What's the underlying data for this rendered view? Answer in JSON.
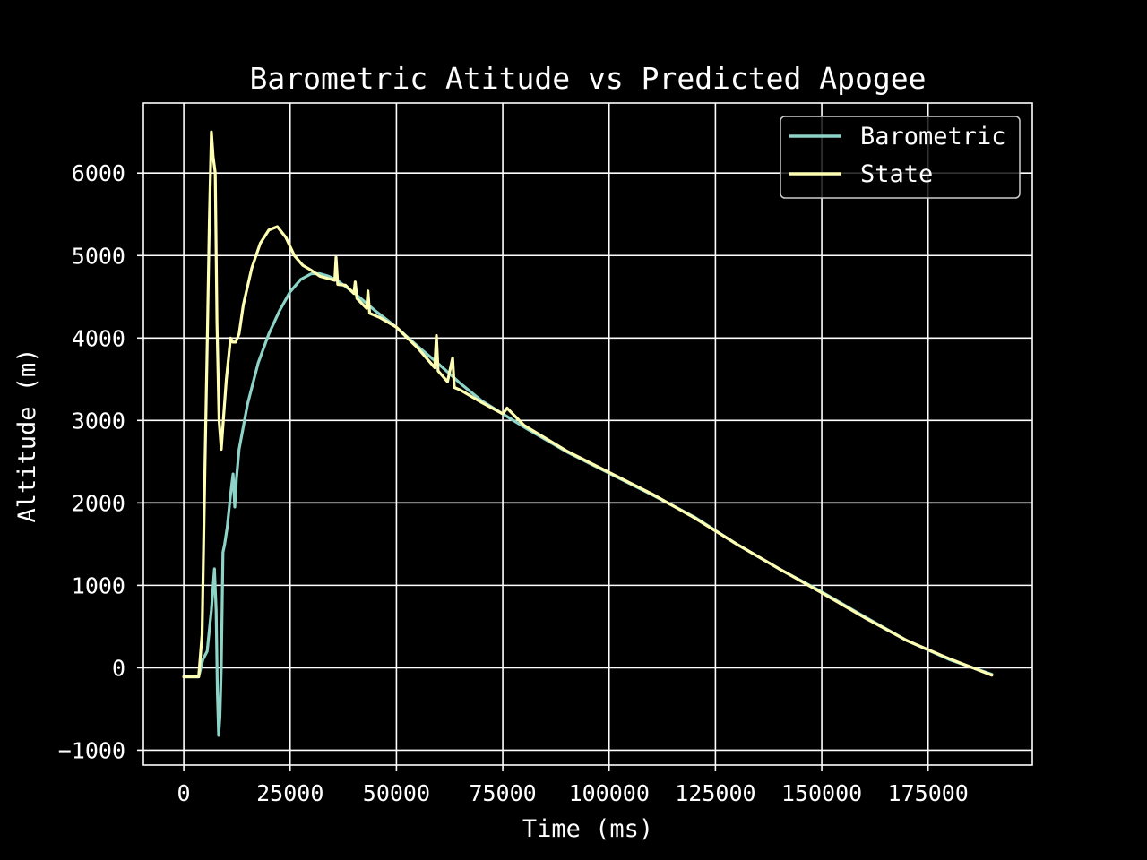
{
  "chart_data": {
    "type": "line",
    "title": "Barometric Atitude vs Predicted Apogee",
    "xlabel": "Time (ms)",
    "ylabel": "Altitude (m)",
    "xlim": [
      -9500,
      199500
    ],
    "ylim": [
      -1180,
      6850
    ],
    "xticks": [
      0,
      25000,
      50000,
      75000,
      100000,
      125000,
      150000,
      175000
    ],
    "yticks": [
      -1000,
      0,
      1000,
      2000,
      3000,
      4000,
      5000,
      6000
    ],
    "grid": true,
    "legend_position": "top-right",
    "colors": {
      "background": "#000000",
      "foreground": "#ffffff"
    },
    "series": [
      {
        "name": "Barometric",
        "color": "#8dd3c7",
        "x": [
          0,
          3500,
          4500,
          5500,
          6500,
          7200,
          7600,
          7900,
          8200,
          8500,
          8800,
          9200,
          9600,
          10200,
          11000,
          11600,
          12000,
          12400,
          13000,
          15000,
          17500,
          20000,
          22500,
          25000,
          27500,
          30000,
          32000,
          34000,
          36000,
          40000,
          45000,
          50000,
          55000,
          60000,
          65000,
          70000,
          75000,
          80000,
          90000,
          100000,
          110000,
          120000,
          130000,
          140000,
          150000,
          160000,
          170000,
          180000,
          190000
        ],
        "y": [
          -110,
          -110,
          100,
          200,
          700,
          1200,
          700,
          -300,
          -820,
          -600,
          0,
          1400,
          1500,
          1700,
          2100,
          2350,
          1950,
          2300,
          2650,
          3200,
          3700,
          4050,
          4330,
          4560,
          4710,
          4780,
          4780,
          4750,
          4700,
          4550,
          4330,
          4130,
          3900,
          3680,
          3450,
          3240,
          3080,
          2920,
          2620,
          2360,
          2100,
          1830,
          1500,
          1200,
          920,
          620,
          330,
          100,
          -80
        ]
      },
      {
        "name": "State",
        "color": "#ffffb3",
        "x": [
          0,
          3500,
          4300,
          5000,
          5500,
          6000,
          6500,
          6900,
          7400,
          7800,
          8300,
          8800,
          9300,
          10000,
          11000,
          11500,
          12200,
          13000,
          14000,
          16000,
          18000,
          20000,
          22000,
          24000,
          26000,
          28000,
          30000,
          32000,
          34000,
          35500,
          35800,
          36200,
          38000,
          40000,
          40300,
          40700,
          43000,
          43300,
          43700,
          46000,
          50000,
          55000,
          59000,
          59400,
          59800,
          62000,
          63200,
          63600,
          65000,
          70000,
          75000,
          76000,
          80000,
          90000,
          100000,
          110000,
          120000,
          130000,
          140000,
          150000,
          160000,
          170000,
          180000,
          190000
        ],
        "y": [
          -110,
          -110,
          400,
          2500,
          3900,
          5400,
          6500,
          6200,
          6000,
          4200,
          3000,
          2650,
          3000,
          3500,
          4000,
          3950,
          3950,
          4050,
          4400,
          4850,
          5150,
          5310,
          5350,
          5220,
          5000,
          4880,
          4820,
          4750,
          4720,
          4700,
          4980,
          4650,
          4640,
          4540,
          4680,
          4480,
          4360,
          4570,
          4300,
          4250,
          4130,
          3880,
          3640,
          4030,
          3600,
          3470,
          3760,
          3400,
          3370,
          3220,
          3080,
          3150,
          2940,
          2630,
          2370,
          2110,
          1820,
          1500,
          1200,
          910,
          610,
          330,
          110,
          -90
        ]
      }
    ]
  }
}
